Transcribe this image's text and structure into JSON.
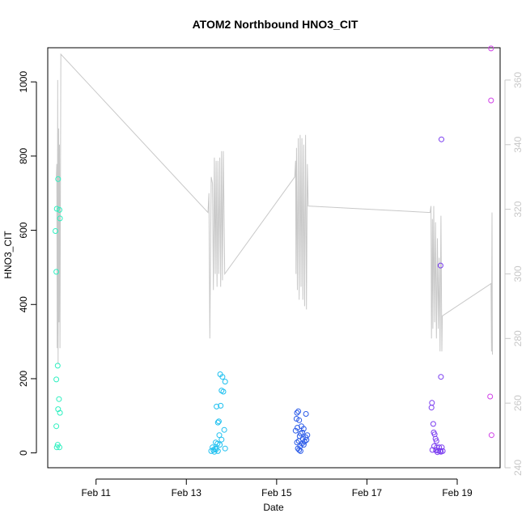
{
  "chart_data": {
    "type": "scatter",
    "title": "ATOM2 Northbound HNO3_CIT",
    "xlabel": "Date",
    "ylabel": "HNO3_CIT",
    "x_tick_labels": [
      "Feb 11",
      "Feb 13",
      "Feb 15",
      "Feb 17",
      "Feb 19"
    ],
    "x_tick_values": [
      11,
      13,
      15,
      17,
      19
    ],
    "x_range_days": [
      9.93,
      19.95
    ],
    "y_left": {
      "ticks": [
        0,
        200,
        400,
        600,
        800,
        1000
      ],
      "ylim": [
        -40,
        1092
      ]
    },
    "y_right": {
      "ticks": [
        240,
        260,
        280,
        300,
        320,
        340,
        360
      ],
      "ylim": [
        240,
        370
      ],
      "color": "#c8c8c8"
    },
    "grid": false,
    "series": [
      {
        "color": "#2ef0c0",
        "points": [
          [
            10.16,
            738
          ],
          [
            10.19,
            655
          ],
          [
            10.2,
            632
          ],
          [
            10.13,
            658
          ],
          [
            10.1,
            598
          ],
          [
            10.12,
            488
          ],
          [
            10.15,
            235
          ],
          [
            10.12,
            198
          ],
          [
            10.18,
            145
          ],
          [
            10.16,
            118
          ],
          [
            10.2,
            108
          ],
          [
            10.12,
            72
          ],
          [
            10.15,
            22
          ],
          [
            10.13,
            15
          ],
          [
            10.19,
            15
          ]
        ]
      },
      {
        "color": "#1ec0f0",
        "points": [
          [
            13.75,
            212
          ],
          [
            13.8,
            205
          ],
          [
            13.86,
            192
          ],
          [
            13.78,
            168
          ],
          [
            13.82,
            165
          ],
          [
            13.76,
            127
          ],
          [
            13.67,
            125
          ],
          [
            13.72,
            85
          ],
          [
            13.7,
            82
          ],
          [
            13.84,
            62
          ],
          [
            13.73,
            48
          ],
          [
            13.78,
            36
          ],
          [
            13.65,
            28
          ],
          [
            13.69,
            25
          ],
          [
            13.74,
            22
          ],
          [
            13.58,
            15
          ],
          [
            13.64,
            12
          ],
          [
            13.86,
            12
          ],
          [
            13.6,
            8
          ],
          [
            13.7,
            5
          ],
          [
            13.55,
            5
          ],
          [
            13.62,
            3
          ],
          [
            13.66,
            10
          ]
        ]
      },
      {
        "color": "#2a5ae8",
        "points": [
          [
            15.48,
            112
          ],
          [
            15.45,
            108
          ],
          [
            15.65,
            105
          ],
          [
            15.44,
            92
          ],
          [
            15.5,
            88
          ],
          [
            15.55,
            72
          ],
          [
            15.46,
            68
          ],
          [
            15.6,
            65
          ],
          [
            15.42,
            60
          ],
          [
            15.57,
            55
          ],
          [
            15.53,
            52
          ],
          [
            15.68,
            48
          ],
          [
            15.51,
            45
          ],
          [
            15.64,
            42
          ],
          [
            15.58,
            38
          ],
          [
            15.66,
            35
          ],
          [
            15.49,
            32
          ],
          [
            15.62,
            30
          ],
          [
            15.45,
            28
          ],
          [
            15.56,
            25
          ],
          [
            15.6,
            22
          ],
          [
            15.52,
            18
          ],
          [
            15.47,
            12
          ],
          [
            15.5,
            8
          ],
          [
            15.53,
            5
          ]
        ]
      },
      {
        "color": "#7a3cf0",
        "points": [
          [
            18.65,
            845
          ],
          [
            18.63,
            505
          ],
          [
            18.64,
            205
          ],
          [
            18.44,
            135
          ],
          [
            18.43,
            122
          ],
          [
            18.47,
            78
          ],
          [
            18.48,
            55
          ],
          [
            18.5,
            50
          ],
          [
            18.52,
            38
          ],
          [
            18.54,
            32
          ],
          [
            18.49,
            18
          ],
          [
            18.55,
            15
          ],
          [
            18.6,
            15
          ],
          [
            18.66,
            15
          ],
          [
            18.45,
            8
          ],
          [
            18.53,
            7
          ],
          [
            18.58,
            6
          ],
          [
            18.62,
            5
          ],
          [
            18.68,
            5
          ],
          [
            18.64,
            3
          ],
          [
            18.56,
            2
          ]
        ]
      },
      {
        "color": "#d040e8",
        "points": [
          [
            19.75,
            1090
          ],
          [
            19.75,
            950
          ],
          [
            19.73,
            152
          ],
          [
            19.76,
            48
          ]
        ]
      }
    ],
    "right_axis_line": {
      "color": "#c8c8c8",
      "points": [
        [
          10.12,
          330
        ],
        [
          10.13,
          334
        ],
        [
          10.14,
          277
        ],
        [
          10.15,
          360
        ],
        [
          10.16,
          272
        ],
        [
          10.17,
          345
        ],
        [
          10.18,
          285
        ],
        [
          10.19,
          340
        ],
        [
          10.2,
          277
        ],
        [
          10.22,
          368
        ],
        [
          13.48,
          319
        ],
        [
          13.5,
          325
        ],
        [
          13.52,
          280
        ],
        [
          13.55,
          330
        ],
        [
          13.58,
          328
        ],
        [
          13.6,
          295
        ],
        [
          13.62,
          336
        ],
        [
          13.64,
          300
        ],
        [
          13.66,
          335
        ],
        [
          13.68,
          296
        ],
        [
          13.7,
          335
        ],
        [
          13.72,
          300
        ],
        [
          13.74,
          336
        ],
        [
          13.76,
          296
        ],
        [
          13.78,
          338
        ],
        [
          13.8,
          298
        ],
        [
          13.82,
          338
        ],
        [
          13.85,
          300
        ],
        [
          15.4,
          330
        ],
        [
          15.42,
          335
        ],
        [
          15.43,
          300
        ],
        [
          15.44,
          339
        ],
        [
          15.46,
          295
        ],
        [
          15.48,
          342
        ],
        [
          15.5,
          292
        ],
        [
          15.52,
          343
        ],
        [
          15.54,
          296
        ],
        [
          15.56,
          342
        ],
        [
          15.58,
          292
        ],
        [
          15.6,
          340
        ],
        [
          15.62,
          290
        ],
        [
          15.64,
          343
        ],
        [
          15.66,
          289
        ],
        [
          15.68,
          334
        ],
        [
          15.7,
          321
        ],
        [
          18.4,
          319
        ],
        [
          18.42,
          321
        ],
        [
          18.43,
          280
        ],
        [
          18.45,
          317
        ],
        [
          18.46,
          283
        ],
        [
          18.48,
          321
        ],
        [
          18.5,
          285
        ],
        [
          18.52,
          316
        ],
        [
          18.54,
          280
        ],
        [
          18.56,
          311
        ],
        [
          18.58,
          283
        ],
        [
          18.6,
          305
        ],
        [
          18.62,
          276
        ],
        [
          18.64,
          318
        ],
        [
          18.66,
          276
        ],
        [
          18.67,
          287
        ],
        [
          19.75,
          297
        ],
        [
          19.76,
          276
        ],
        [
          19.77,
          319
        ],
        [
          19.78,
          275
        ]
      ]
    }
  }
}
